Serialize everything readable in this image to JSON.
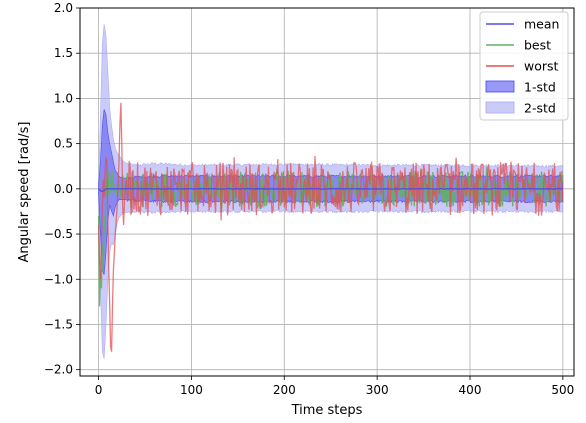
{
  "chart_data": {
    "type": "line",
    "title": "",
    "xlabel": "Time steps",
    "ylabel": "Angular speed [rad/s]",
    "xlim": [
      -20,
      512
    ],
    "ylim": [
      -2.07,
      2.0
    ],
    "xticks": [
      0,
      100,
      200,
      300,
      400,
      500
    ],
    "yticks": [
      -2.0,
      -1.5,
      -1.0,
      -0.5,
      0.0,
      0.5,
      1.0,
      1.5,
      2.0
    ],
    "ytick_labels": [
      "−2.0",
      "−1.5",
      "−1.0",
      "−0.5",
      "0.0",
      "0.5",
      "1.0",
      "1.5",
      "2.0"
    ],
    "grid": true,
    "legend_position": "top-right",
    "legend": [
      {
        "label": "mean",
        "kind": "line",
        "color": "#5050e0"
      },
      {
        "label": "best",
        "kind": "line",
        "color": "#60b060"
      },
      {
        "label": "worst",
        "kind": "line",
        "color": "#e05050"
      },
      {
        "label": "1-std",
        "kind": "patch",
        "color": "#4646f0"
      },
      {
        "label": "2-std",
        "kind": "patch",
        "color": "#a8a8f5"
      }
    ],
    "n_steps": 501,
    "steady_state": {
      "mean": 0.0,
      "std1": 0.14,
      "std2": 0.25,
      "best_amplitude": 0.2,
      "worst_amplitude": 0.3
    },
    "series": [
      {
        "name": "mean",
        "x": [
          0,
          2,
          4,
          6,
          8,
          10,
          12,
          14,
          16,
          20,
          25,
          30,
          40,
          60,
          100,
          200,
          300,
          400,
          500
        ],
        "values": [
          0.0,
          -0.02,
          -0.03,
          -0.02,
          0.0,
          0.0,
          0.0,
          0.0,
          0.0,
          0.0,
          0.0,
          0.0,
          0.0,
          0.0,
          0.0,
          0.0,
          0.0,
          0.0,
          0.0
        ]
      },
      {
        "name": "1-std upper",
        "x": [
          0,
          2,
          4,
          6,
          8,
          10,
          12,
          14,
          16,
          18,
          20,
          22,
          25,
          30,
          40,
          60,
          100,
          200,
          300,
          400,
          500
        ],
        "values": [
          0.05,
          0.3,
          0.7,
          0.88,
          0.82,
          0.62,
          0.5,
          0.4,
          0.3,
          0.2,
          0.18,
          0.14,
          0.12,
          0.12,
          0.13,
          0.14,
          0.14,
          0.14,
          0.14,
          0.14,
          0.14
        ]
      },
      {
        "name": "1-std lower",
        "x": [
          0,
          2,
          4,
          6,
          8,
          10,
          12,
          14,
          16,
          18,
          20,
          22,
          25,
          30,
          40,
          60,
          100,
          200,
          300,
          400,
          500
        ],
        "values": [
          -0.05,
          -0.5,
          -0.9,
          -0.95,
          -0.7,
          -0.35,
          -0.18,
          -0.25,
          -0.3,
          -0.2,
          -0.15,
          -0.12,
          -0.12,
          -0.12,
          -0.13,
          -0.14,
          -0.14,
          -0.14,
          -0.14,
          -0.14,
          -0.14
        ]
      },
      {
        "name": "2-std upper",
        "x": [
          0,
          2,
          4,
          6,
          8,
          10,
          12,
          14,
          16,
          18,
          20,
          22,
          25,
          30,
          40,
          60,
          100,
          200,
          300,
          400,
          500
        ],
        "values": [
          0.1,
          0.8,
          1.6,
          1.82,
          1.7,
          1.3,
          0.9,
          0.7,
          0.55,
          0.45,
          0.4,
          0.38,
          0.32,
          0.28,
          0.26,
          0.28,
          0.26,
          0.27,
          0.26,
          0.26,
          0.25
        ]
      },
      {
        "name": "2-std lower",
        "x": [
          0,
          2,
          4,
          6,
          8,
          10,
          12,
          14,
          16,
          18,
          20,
          22,
          25,
          30,
          40,
          60,
          100,
          200,
          300,
          400,
          500
        ],
        "values": [
          -0.1,
          -1.1,
          -1.8,
          -1.88,
          -1.5,
          -1.0,
          -0.7,
          -0.6,
          -0.62,
          -0.5,
          -0.38,
          -0.32,
          -0.28,
          -0.26,
          -0.25,
          -0.26,
          -0.25,
          -0.25,
          -0.25,
          -0.25,
          -0.25
        ]
      },
      {
        "name": "best",
        "x": [
          0,
          1,
          2,
          3,
          4,
          5,
          6,
          7,
          8,
          9,
          10,
          11,
          12,
          13,
          14,
          15,
          16,
          18,
          20,
          22,
          24,
          26,
          28,
          30
        ],
        "values": [
          -0.3,
          -1.3,
          -0.9,
          -1.1,
          -0.6,
          -0.9,
          -0.3,
          -0.5,
          0.1,
          0.0,
          -0.1,
          0.2,
          0.15,
          -0.05,
          0.05,
          0.2,
          -0.05,
          0.05,
          -0.08,
          0.1,
          -0.1,
          0.15,
          -0.05,
          0.1
        ]
      },
      {
        "name": "worst",
        "x": [
          0,
          1,
          2,
          3,
          4,
          5,
          6,
          7,
          8,
          9,
          10,
          11,
          12,
          13,
          14,
          15,
          16,
          18,
          20,
          22,
          23,
          24,
          25,
          26,
          27,
          28,
          30
        ],
        "values": [
          -0.4,
          -0.8,
          -1.0,
          -0.6,
          -0.2,
          0.1,
          -0.1,
          0.2,
          0.35,
          0.3,
          -0.4,
          -0.9,
          -1.3,
          -1.75,
          -1.8,
          -1.3,
          -0.9,
          -0.5,
          -0.2,
          0.3,
          0.7,
          0.95,
          0.5,
          -0.2,
          -0.4,
          -0.1,
          0.1
        ]
      }
    ]
  }
}
